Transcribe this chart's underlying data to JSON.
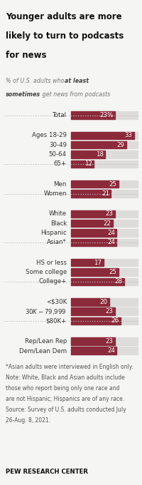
{
  "title": "Younger adults are more likely to turn to podcasts for news",
  "bar_color": "#8B2A3A",
  "background_color": "#F5F5F3",
  "bar_bg_color": "#DEDCDA",
  "groups": [
    {
      "labels": [
        "Total"
      ],
      "values": [
        23
      ],
      "show_pct": true
    },
    {
      "labels": [
        "Ages 18-29",
        "30-49",
        "50-64",
        "65+"
      ],
      "values": [
        33,
        29,
        18,
        12
      ],
      "show_pct": false
    },
    {
      "labels": [
        "Men",
        "Women"
      ],
      "values": [
        25,
        21
      ],
      "show_pct": false
    },
    {
      "labels": [
        "White",
        "Black",
        "Hispanic",
        "Asian*"
      ],
      "values": [
        23,
        22,
        24,
        24
      ],
      "show_pct": false
    },
    {
      "labels": [
        "HS or less",
        "Some college",
        "College+"
      ],
      "values": [
        17,
        25,
        28
      ],
      "show_pct": false
    },
    {
      "labels": [
        "<$30K",
        "$30K-$79,999",
        "$80K+"
      ],
      "values": [
        20,
        23,
        26
      ],
      "show_pct": false
    },
    {
      "labels": [
        "Rep/Lean Rep",
        "Dem/Lean Dem"
      ],
      "values": [
        23,
        24
      ],
      "show_pct": false
    }
  ],
  "note_line1": "*Asian adults were interviewed in English only.",
  "note_line2": "Note: White, Black and Asian adults include",
  "note_line3": "those who report being only one race and",
  "note_line4": "are not Hispanic; Hispanics are of any race.",
  "note_line5": "Source: Survey of U.S. adults conducted July",
  "note_line6": "26-Aug. 8, 2021.",
  "source_label": "PEW RESEARCH CENTER",
  "max_val": 35,
  "note_fontsize": 5.5,
  "label_fontsize": 6.2,
  "value_fontsize": 6.2,
  "title_fontsize": 8.5,
  "subtitle_fontsize": 5.8
}
